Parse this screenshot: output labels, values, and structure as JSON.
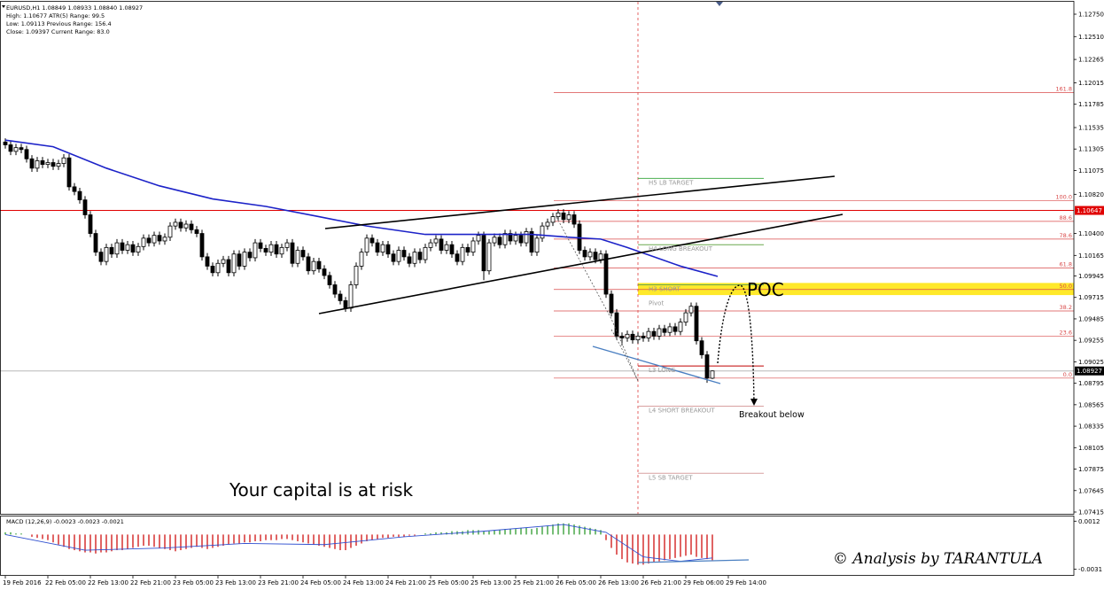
{
  "chart_data": {
    "type": "candlestick",
    "header": [
      "EURUSD,H1  1.08849 1.08933 1.08840 1.08927",
      "High:   1.10677   ATR(5) Range: 99.5",
      "Low:    1.09113   Previous Range: 156.4",
      "Close:  1.09397   Current Range: 83.0"
    ],
    "up_color": "#ffffff",
    "down_color": "#000000",
    "xlim": [
      -1,
      201
    ],
    "ylim": [
      1.07396,
      1.12883
    ],
    "yticks": [
      {
        "value": 1.1275,
        "label": "1.12750"
      },
      {
        "value": 1.1251,
        "label": "1.12510"
      },
      {
        "value": 1.12265,
        "label": "1.12265"
      },
      {
        "value": 1.12015,
        "label": "1.12015"
      },
      {
        "value": 1.11785,
        "label": "1.11785"
      },
      {
        "value": 1.11535,
        "label": "1.11535"
      },
      {
        "value": 1.11305,
        "label": "1.11305"
      },
      {
        "value": 1.11075,
        "label": "1.11075"
      },
      {
        "value": 1.1082,
        "label": "1.10820"
      },
      {
        "value": 1.104,
        "label": "1.10400"
      },
      {
        "value": 1.10165,
        "label": "1.10165"
      },
      {
        "value": 1.09945,
        "label": "1.09945"
      },
      {
        "value": 1.09715,
        "label": "1.09715"
      },
      {
        "value": 1.09485,
        "label": "1.09485"
      },
      {
        "value": 1.09255,
        "label": "1.09255"
      },
      {
        "value": 1.09025,
        "label": "1.09025"
      },
      {
        "value": 1.08795,
        "label": "1.08795"
      },
      {
        "value": 1.08565,
        "label": "1.08565"
      },
      {
        "value": 1.08335,
        "label": "1.08335"
      },
      {
        "value": 1.08105,
        "label": "1.08105"
      },
      {
        "value": 1.07875,
        "label": "1.07875"
      },
      {
        "value": 1.07645,
        "label": "1.07645"
      },
      {
        "value": 1.07415,
        "label": "1.07415"
      }
    ],
    "xticks": [
      {
        "value": 0,
        "label": "19 Feb 2016"
      },
      {
        "value": 8,
        "label": "22 Feb 05:00"
      },
      {
        "value": 16,
        "label": "22 Feb 13:00"
      },
      {
        "value": 24,
        "label": "22 Feb 21:00"
      },
      {
        "value": 32,
        "label": "23 Feb 05:00"
      },
      {
        "value": 40,
        "label": "23 Feb 13:00"
      },
      {
        "value": 48,
        "label": "23 Feb 21:00"
      },
      {
        "value": 56,
        "label": "24 Feb 05:00"
      },
      {
        "value": 64,
        "label": "24 Feb 13:00"
      },
      {
        "value": 72,
        "label": "24 Feb 21:00"
      },
      {
        "value": 80,
        "label": "25 Feb 05:00"
      },
      {
        "value": 88,
        "label": "25 Feb 13:00"
      },
      {
        "value": 96,
        "label": "25 Feb 21:00"
      },
      {
        "value": 104,
        "label": "26 Feb 05:00"
      },
      {
        "value": 112,
        "label": "26 Feb 13:00"
      },
      {
        "value": 120,
        "label": "26 Feb 21:00"
      },
      {
        "value": 128,
        "label": "29 Feb 06:00"
      },
      {
        "value": 136,
        "label": "29 Feb 14:00"
      }
    ],
    "candles": [
      [
        1.1138,
        1.1142,
        1.1131,
        1.1135
      ],
      [
        1.1135,
        1.1139,
        1.1124,
        1.1128
      ],
      [
        1.1128,
        1.1136,
        1.1124,
        1.1132
      ],
      [
        1.1132,
        1.1136,
        1.1126,
        1.113
      ],
      [
        1.113,
        1.1134,
        1.1116,
        1.112
      ],
      [
        1.112,
        1.1124,
        1.1106,
        1.111
      ],
      [
        1.111,
        1.1122,
        1.1106,
        1.1118
      ],
      [
        1.1118,
        1.1122,
        1.111,
        1.1114
      ],
      [
        1.1114,
        1.112,
        1.111,
        1.1116
      ],
      [
        1.1116,
        1.112,
        1.1108,
        1.1112
      ],
      [
        1.1112,
        1.1119,
        1.1108,
        1.1115
      ],
      [
        1.1115,
        1.1125,
        1.1111,
        1.1121
      ],
      [
        1.1121,
        1.1125,
        1.1086,
        1.109
      ],
      [
        1.109,
        1.1094,
        1.1081,
        1.1085
      ],
      [
        1.1085,
        1.1089,
        1.1072,
        1.1076
      ],
      [
        1.1076,
        1.108,
        1.1056,
        1.106
      ],
      [
        1.106,
        1.1064,
        1.1036,
        1.104
      ],
      [
        1.104,
        1.1044,
        1.1016,
        1.102
      ],
      [
        1.102,
        1.1024,
        1.1006,
        1.101
      ],
      [
        1.101,
        1.1029,
        1.1006,
        1.1025
      ],
      [
        1.1025,
        1.1029,
        1.1014,
        1.1018
      ],
      [
        1.1018,
        1.1034,
        1.1014,
        1.103
      ],
      [
        1.103,
        1.1034,
        1.1018,
        1.1022
      ],
      [
        1.1022,
        1.1032,
        1.1018,
        1.1028
      ],
      [
        1.1028,
        1.1032,
        1.1016,
        1.102
      ],
      [
        1.102,
        1.103,
        1.1016,
        1.1026
      ],
      [
        1.1026,
        1.1039,
        1.1022,
        1.1035
      ],
      [
        1.1035,
        1.1039,
        1.1026,
        1.103
      ],
      [
        1.103,
        1.1042,
        1.1026,
        1.1038
      ],
      [
        1.1038,
        1.1042,
        1.1028,
        1.1032
      ],
      [
        1.1032,
        1.104,
        1.1028,
        1.1036
      ],
      [
        1.1036,
        1.1052,
        1.1032,
        1.1048
      ],
      [
        1.1048,
        1.1056,
        1.1044,
        1.1052
      ],
      [
        1.1052,
        1.1056,
        1.1042,
        1.1046
      ],
      [
        1.1046,
        1.1054,
        1.1042,
        1.105
      ],
      [
        1.105,
        1.1054,
        1.104,
        1.1044
      ],
      [
        1.1044,
        1.1048,
        1.1036,
        1.104
      ],
      [
        1.104,
        1.1044,
        1.1011,
        1.1015
      ],
      [
        1.1015,
        1.1019,
        1.1001,
        1.1005
      ],
      [
        1.1005,
        1.1009,
        1.0994,
        1.0998
      ],
      [
        1.0998,
        1.1012,
        1.0994,
        1.1008
      ],
      [
        1.1008,
        1.1016,
        1.1004,
        1.1012
      ],
      [
        1.1012,
        1.1016,
        1.0994,
        1.0998
      ],
      [
        1.0998,
        1.1022,
        1.0994,
        1.1018
      ],
      [
        1.1018,
        1.1022,
        1.1001,
        1.1005
      ],
      [
        1.1005,
        1.1024,
        1.1001,
        1.102
      ],
      [
        1.102,
        1.1024,
        1.101,
        1.1014
      ],
      [
        1.1014,
        1.1034,
        1.101,
        1.103
      ],
      [
        1.103,
        1.1034,
        1.102,
        1.1024
      ],
      [
        1.1024,
        1.1028,
        1.1016,
        1.102
      ],
      [
        1.102,
        1.1032,
        1.1016,
        1.1028
      ],
      [
        1.1028,
        1.1032,
        1.1014,
        1.1018
      ],
      [
        1.1018,
        1.1029,
        1.1014,
        1.1025
      ],
      [
        1.1025,
        1.1034,
        1.1021,
        1.103
      ],
      [
        1.103,
        1.1034,
        1.1004,
        1.1008
      ],
      [
        1.1008,
        1.1026,
        1.1004,
        1.1022
      ],
      [
        1.1022,
        1.1026,
        1.1011,
        1.1015
      ],
      [
        1.1015,
        1.1019,
        1.0996,
        1.1
      ],
      [
        1.1,
        1.1014,
        1.0996,
        1.101
      ],
      [
        1.101,
        1.1014,
        1.0998,
        1.1002
      ],
      [
        1.1002,
        1.1006,
        1.0991,
        1.0995
      ],
      [
        1.0995,
        1.0999,
        1.0981,
        1.0985
      ],
      [
        1.0985,
        1.0989,
        1.0971,
        1.0975
      ],
      [
        1.0975,
        1.0979,
        1.0964,
        1.0968
      ],
      [
        1.0968,
        1.0972,
        1.0956,
        1.096
      ],
      [
        1.096,
        1.0989,
        1.0956,
        1.0985
      ],
      [
        1.0985,
        1.1009,
        1.0981,
        1.1005
      ],
      [
        1.1005,
        1.1024,
        1.1001,
        1.102
      ],
      [
        1.102,
        1.1039,
        1.1016,
        1.1035
      ],
      [
        1.1035,
        1.1039,
        1.1026,
        1.103
      ],
      [
        1.103,
        1.1034,
        1.1016,
        1.102
      ],
      [
        1.102,
        1.1032,
        1.1016,
        1.1028
      ],
      [
        1.1028,
        1.1032,
        1.1014,
        1.1018
      ],
      [
        1.1018,
        1.1022,
        1.1006,
        1.101
      ],
      [
        1.101,
        1.1026,
        1.1006,
        1.1022
      ],
      [
        1.1022,
        1.1026,
        1.1011,
        1.1015
      ],
      [
        1.1015,
        1.1019,
        1.1004,
        1.1008
      ],
      [
        1.1008,
        1.1024,
        1.1004,
        1.102
      ],
      [
        1.102,
        1.1024,
        1.1008,
        1.1012
      ],
      [
        1.1012,
        1.1029,
        1.1008,
        1.1025
      ],
      [
        1.1025,
        1.1034,
        1.1021,
        1.103
      ],
      [
        1.103,
        1.1038,
        1.1026,
        1.1034
      ],
      [
        1.1034,
        1.1038,
        1.1018,
        1.1022
      ],
      [
        1.1022,
        1.1032,
        1.1018,
        1.1028
      ],
      [
        1.1028,
        1.1032,
        1.1014,
        1.1018
      ],
      [
        1.1018,
        1.1022,
        1.1006,
        1.101
      ],
      [
        1.101,
        1.1029,
        1.1006,
        1.1025
      ],
      [
        1.1025,
        1.1029,
        1.1016,
        1.102
      ],
      [
        1.102,
        1.1036,
        1.1016,
        1.1032
      ],
      [
        1.1032,
        1.1042,
        1.1028,
        1.1038
      ],
      [
        1.1038,
        1.1042,
        1.099,
        1.1
      ],
      [
        1.1,
        1.1034,
        1.0996,
        1.103
      ],
      [
        1.103,
        1.104,
        1.1026,
        1.1036
      ],
      [
        1.1036,
        1.104,
        1.1024,
        1.1028
      ],
      [
        1.1028,
        1.1044,
        1.1024,
        1.104
      ],
      [
        1.104,
        1.1044,
        1.1028,
        1.1032
      ],
      [
        1.1032,
        1.1042,
        1.1028,
        1.1038
      ],
      [
        1.1038,
        1.1042,
        1.1026,
        1.103
      ],
      [
        1.103,
        1.1046,
        1.1026,
        1.1042
      ],
      [
        1.1042,
        1.1046,
        1.1016,
        1.102
      ],
      [
        1.102,
        1.1039,
        1.1016,
        1.1035
      ],
      [
        1.1035,
        1.1052,
        1.1031,
        1.1048
      ],
      [
        1.1048,
        1.1056,
        1.1044,
        1.1052
      ],
      [
        1.1052,
        1.1062,
        1.1048,
        1.1058
      ],
      [
        1.1058,
        1.1066,
        1.1054,
        1.1062
      ],
      [
        1.1062,
        1.1066,
        1.1051,
        1.1055
      ],
      [
        1.1055,
        1.1064,
        1.1051,
        1.106
      ],
      [
        1.106,
        1.1064,
        1.1046,
        1.105
      ],
      [
        1.105,
        1.1054,
        1.1018,
        1.1022
      ],
      [
        1.1022,
        1.1026,
        1.1011,
        1.1015
      ],
      [
        1.1015,
        1.1024,
        1.1011,
        1.102
      ],
      [
        1.102,
        1.1024,
        1.1008,
        1.1012
      ],
      [
        1.1012,
        1.1022,
        1.1008,
        1.1018
      ],
      [
        1.1018,
        1.1022,
        1.0971,
        1.0975
      ],
      [
        1.0975,
        1.0979,
        1.0951,
        1.0955
      ],
      [
        1.0955,
        1.0959,
        1.0926,
        1.093
      ],
      [
        1.093,
        1.0934,
        1.092,
        1.0928
      ],
      [
        1.0928,
        1.0936,
        1.0924,
        1.0932
      ],
      [
        1.0932,
        1.0936,
        1.0922,
        1.0926
      ],
      [
        1.0926,
        1.0934,
        1.0922,
        1.093
      ],
      [
        1.093,
        1.0934,
        1.0924,
        1.0928
      ],
      [
        1.0928,
        1.0939,
        1.0924,
        1.0935
      ],
      [
        1.0935,
        1.0939,
        1.0926,
        1.093
      ],
      [
        1.093,
        1.0942,
        1.0926,
        1.0938
      ],
      [
        1.0938,
        1.0942,
        1.093,
        1.0934
      ],
      [
        1.0934,
        1.0944,
        1.093,
        1.094
      ],
      [
        1.094,
        1.0944,
        1.0931,
        1.0935
      ],
      [
        1.0935,
        1.0949,
        1.0931,
        1.0945
      ],
      [
        1.0945,
        1.0959,
        1.0941,
        1.0955
      ],
      [
        1.0955,
        1.0966,
        1.0951,
        1.0962
      ],
      [
        1.0962,
        1.0966,
        1.0921,
        1.0925
      ],
      [
        1.0925,
        1.0929,
        1.0906,
        1.091
      ],
      [
        1.091,
        1.0914,
        1.088,
        1.0885
      ],
      [
        1.08849,
        1.08933,
        1.0884,
        1.08927
      ]
    ],
    "ma": {
      "color": "#1c22c8",
      "x": [
        0,
        9,
        19,
        29,
        39,
        49,
        59,
        68,
        79,
        89,
        99,
        106,
        112,
        117,
        122,
        127,
        134
      ],
      "values": [
        1.114,
        1.1133,
        1.111,
        1.1091,
        1.1077,
        1.1069,
        1.1058,
        1.1048,
        1.1039,
        1.1039,
        1.1039,
        1.1036,
        1.1034,
        1.1025,
        1.1015,
        1.1005,
        1.0994
      ]
    },
    "price_lines": [
      {
        "value": 1.10647,
        "color": "#e00000",
        "label_bg": "#e00000",
        "label_color": "#ffffff"
      },
      {
        "value": 1.08927,
        "color": "#b8b8b8",
        "label_bg": "#000000",
        "label_color": "#ffffff"
      }
    ],
    "fib_levels": [
      {
        "level": "161.8",
        "price": 1.1191
      },
      {
        "level": "100.0",
        "price": 1.1075
      },
      {
        "level": "88.6",
        "price": 1.1053
      },
      {
        "level": "78.6",
        "price": 1.1034
      },
      {
        "level": "61.8",
        "price": 1.1003
      },
      {
        "level": "50.0",
        "price": 1.098
      },
      {
        "level": "38.2",
        "price": 1.0957
      },
      {
        "level": "23.6",
        "price": 1.093
      },
      {
        "level": "0.0",
        "price": 1.0885
      }
    ],
    "fib_color": "#d94a4a",
    "pivots": [
      {
        "label": "H5 LB TARGET",
        "price": 1.1099,
        "color": "#4caf50"
      },
      {
        "label": "H4 LONG BREAKOUT",
        "price": 1.1028,
        "color": "#6aa84f"
      },
      {
        "label": "H3 SHORT",
        "price": 1.0985,
        "color": "#6aa84f"
      },
      {
        "label": "Pivot",
        "price": 1.097,
        "color": "none"
      },
      {
        "label": "L3 LONG",
        "price": 1.0898,
        "color": "#c00000"
      },
      {
        "label": "L4 SHORT BREAKOUT",
        "price": 1.0855,
        "color": "#d9a0a0"
      },
      {
        "label": "L5 SB TARGET",
        "price": 1.0783,
        "color": "#d9a0a0"
      }
    ],
    "poc_zone": [
      1.0974,
      1.0987
    ],
    "annotations": {
      "poc": "POC",
      "breakout": "Breakout below",
      "risk": "Your capital is at risk",
      "credit": "© Analysis by TARANTULA"
    },
    "macd": {
      "title": "MACD (12,26,9) -0.0023 -0.0023 -0.0021",
      "ylim": [
        -0.0037,
        0.0017
      ],
      "yticks": [
        0.0012,
        -0.0031
      ],
      "pos_color": "#2e9a2e",
      "neg_color": "#d01010",
      "values": [
        0.0002,
        0.0002,
        0.0001,
        0.0001,
        0,
        -0.0002,
        -0.0003,
        -0.0004,
        -0.0005,
        -0.0007,
        -0.0009,
        -0.0011,
        -0.0013,
        -0.0014,
        -0.0015,
        -0.0016,
        -0.0016,
        -0.0017,
        -0.0016,
        -0.0016,
        -0.0015,
        -0.0014,
        -0.0014,
        -0.0013,
        -0.0012,
        -0.0011,
        -0.001,
        -0.001,
        -0.0011,
        -0.0012,
        -0.0013,
        -0.0014,
        -0.0015,
        -0.0014,
        -0.0013,
        -0.0012,
        -0.0011,
        -0.0012,
        -0.0013,
        -0.0012,
        -0.0011,
        -0.001,
        -0.0009,
        -0.0008,
        -0.0008,
        -0.0007,
        -0.0007,
        -0.0006,
        -0.0006,
        -0.0005,
        -0.0005,
        -0.0005,
        -0.0004,
        -0.0004,
        -0.0005,
        -0.0006,
        -0.0007,
        -0.0008,
        -0.0009,
        -0.001,
        -0.0011,
        -0.0012,
        -0.0013,
        -0.0014,
        -0.0014,
        -0.0012,
        -0.001,
        -0.0008,
        -0.0006,
        -0.0005,
        -0.0004,
        -0.0003,
        -0.0003,
        -0.0002,
        -0.0002,
        -0.0002,
        -0.0001,
        -0.0001,
        0,
        0.0001,
        0.0001,
        0.0002,
        0.0002,
        0.0002,
        0.0003,
        0.0003,
        0.0003,
        0.0004,
        0.0004,
        0.0004,
        0.0003,
        0.0003,
        0.0004,
        0.0004,
        0.0005,
        0.0005,
        0.0005,
        0.0006,
        0.0006,
        0.0005,
        0.0006,
        0.0007,
        0.0008,
        0.0009,
        0.001,
        0.001,
        0.001,
        0.0009,
        0.0008,
        0.0007,
        0.0006,
        0.0005,
        0.0004,
        -0.0005,
        -0.0012,
        -0.0018,
        -0.0022,
        -0.0025,
        -0.0026,
        -0.0027,
        -0.0027,
        -0.0026,
        -0.0025,
        -0.0024,
        -0.0023,
        -0.0022,
        -0.0021,
        -0.002,
        -0.0019,
        -0.0018,
        -0.002,
        -0.0021,
        -0.0022,
        -0.0023
      ],
      "signal": {
        "color": "#3050d0",
        "x": [
          0,
          15,
          30,
          45,
          60,
          75,
          90,
          105,
          113,
          120,
          127,
          133
        ],
        "values": [
          0,
          -0.0014,
          -0.0012,
          -0.0008,
          -0.0009,
          -0.0002,
          0.0003,
          0.0009,
          0.0002,
          -0.002,
          -0.0024,
          -0.0021
        ]
      }
    }
  }
}
